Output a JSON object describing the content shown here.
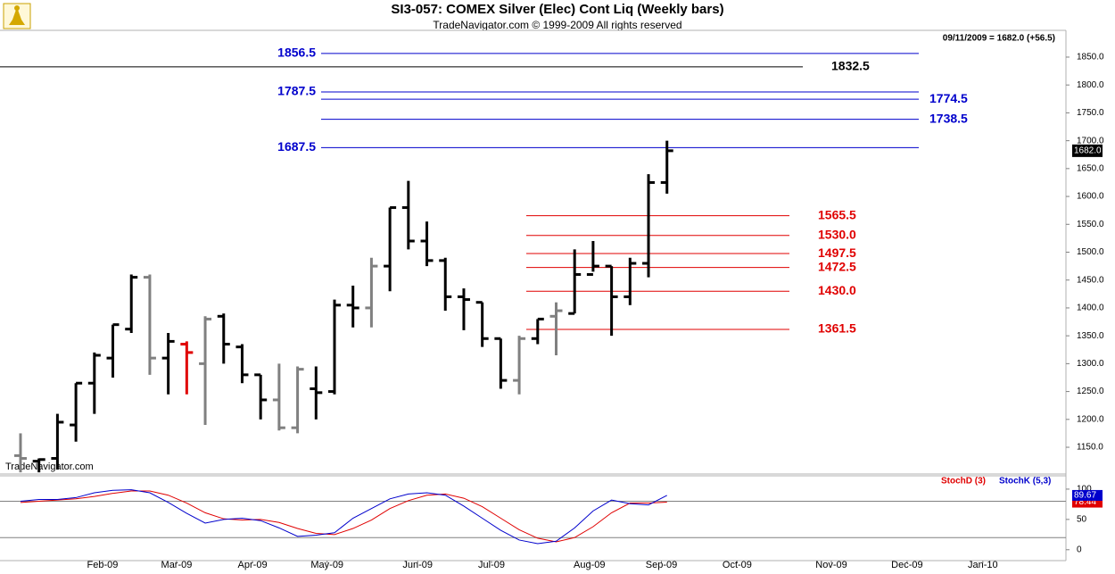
{
  "title": "SI3-057:  COMEX Silver (Elec) Cont Liq  (Weekly bars)",
  "subtitle": "TradeNavigator.com © 1999-2009 All rights reserved",
  "header_readout": "09/11/2009 = 1682.0 (+56.5)",
  "watermark": "TradeNavigator.com",
  "chart_data": [
    {
      "type": "ohlc",
      "xlim": [
        -1.11,
        56.6
      ],
      "ylim": [
        1102,
        1898
      ],
      "yticks": [
        {
          "value": 1150,
          "label": "1150.0"
        },
        {
          "value": 1200,
          "label": "1200.0"
        },
        {
          "value": 1250,
          "label": "1250.0"
        },
        {
          "value": 1300,
          "label": "1300.0"
        },
        {
          "value": 1350,
          "label": "1350.0"
        },
        {
          "value": 1400,
          "label": "1400.0"
        },
        {
          "value": 1450,
          "label": "1450.0"
        },
        {
          "value": 1500,
          "label": "1500.0"
        },
        {
          "value": 1550,
          "label": "1550.0"
        },
        {
          "value": 1600,
          "label": "1600.0"
        },
        {
          "value": 1650,
          "label": "1650.0"
        },
        {
          "value": 1700,
          "label": "1700.0"
        },
        {
          "value": 1750,
          "label": "1750.0"
        },
        {
          "value": 1800,
          "label": "1800.0"
        },
        {
          "value": 1850,
          "label": "1850.0"
        }
      ],
      "open": [
        1135,
        1125,
        1130,
        1190,
        1265,
        1310,
        1362,
        1455,
        1310,
        1335,
        1300,
        1385,
        1330,
        1280,
        1235,
        1185,
        1255,
        1250,
        1405,
        1400,
        1475,
        1580,
        1520,
        1485,
        1420,
        1410,
        1345,
        1270,
        1345,
        1385,
        1390,
        1460,
        1475,
        1420,
        1480,
        1625
      ],
      "high": [
        1175,
        1130,
        1210,
        1265,
        1320,
        1370,
        1460,
        1460,
        1355,
        1340,
        1385,
        1390,
        1335,
        1280,
        1300,
        1295,
        1295,
        1415,
        1440,
        1490,
        1580,
        1628,
        1555,
        1490,
        1435,
        1410,
        1345,
        1350,
        1380,
        1410,
        1505,
        1520,
        1475,
        1490,
        1640,
        1700
      ],
      "low": [
        1105,
        1105,
        1110,
        1160,
        1210,
        1275,
        1355,
        1280,
        1245,
        1245,
        1190,
        1300,
        1265,
        1200,
        1180,
        1175,
        1200,
        1245,
        1365,
        1365,
        1430,
        1505,
        1475,
        1395,
        1360,
        1330,
        1255,
        1245,
        1335,
        1315,
        1390,
        1465,
        1350,
        1405,
        1455,
        1605
      ],
      "close": [
        1130,
        1128,
        1195,
        1265,
        1315,
        1370,
        1455,
        1310,
        1340,
        1320,
        1380,
        1335,
        1280,
        1235,
        1185,
        1290,
        1248,
        1405,
        1400,
        1475,
        1580,
        1520,
        1485,
        1420,
        1415,
        1345,
        1270,
        1345,
        1380,
        1395,
        1460,
        1475,
        1420,
        1480,
        1625,
        1682
      ],
      "colors": [
        "#808080",
        "#000000",
        "#000000",
        "#000000",
        "#000000",
        "#000000",
        "#000000",
        "#808080",
        "#000000",
        "#e00000",
        "#808080",
        "#000000",
        "#000000",
        "#000000",
        "#808080",
        "#808080",
        "#000000",
        "#000000",
        "#000000",
        "#808080",
        "#000000",
        "#000000",
        "#000000",
        "#000000",
        "#000000",
        "#000000",
        "#000000",
        "#808080",
        "#000000",
        "#808080",
        "#000000",
        "#000000",
        "#000000",
        "#000000",
        "#000000",
        "#000000"
      ],
      "last_price": {
        "value": 1682,
        "label": "1682.0"
      },
      "levels": [
        {
          "value": 1856.5,
          "label": "1856.5",
          "color": "#0000cc",
          "label_side": "left"
        },
        {
          "value": 1832.5,
          "label": "1832.5",
          "color": "#000000",
          "label_side": "right"
        },
        {
          "value": 1787.5,
          "label": "1787.5",
          "color": "#0000cc",
          "label_side": "left"
        },
        {
          "value": 1774.5,
          "label": "1774.5",
          "color": "#0000cc",
          "label_side": "right"
        },
        {
          "value": 1738.5,
          "label": "1738.5",
          "color": "#0000cc",
          "label_side": "right"
        },
        {
          "value": 1687.5,
          "label": "1687.5",
          "color": "#0000cc",
          "label_side": "left"
        },
        {
          "value": 1565.5,
          "label": "1565.5",
          "color": "#e00000",
          "label_side": "right"
        },
        {
          "value": 1530,
          "label": "1530.0",
          "color": "#e00000",
          "label_side": "right"
        },
        {
          "value": 1497.5,
          "label": "1497.5",
          "color": "#e00000",
          "label_side": "right"
        },
        {
          "value": 1472.5,
          "label": "1472.5",
          "color": "#e00000",
          "label_side": "right"
        },
        {
          "value": 1430,
          "label": "1430.0",
          "color": "#e00000",
          "label_side": "right"
        },
        {
          "value": 1361.5,
          "label": "1361.5",
          "color": "#e00000",
          "label_side": "right"
        }
      ]
    },
    {
      "type": "line",
      "xlim": [
        -1.11,
        56.6
      ],
      "ylim": [
        -18,
        122
      ],
      "yticks": [
        0,
        50,
        100
      ],
      "hlines": [
        20,
        80
      ],
      "xticks": [
        {
          "value": 4.44,
          "label": "Feb-09"
        },
        {
          "value": 8.45,
          "label": "Mar-09"
        },
        {
          "value": 12.56,
          "label": "Apr-09"
        },
        {
          "value": 16.6,
          "label": "May-09"
        },
        {
          "value": 21.5,
          "label": "Jun-09"
        },
        {
          "value": 25.5,
          "label": "Jul-09"
        },
        {
          "value": 30.8,
          "label": "Aug-09"
        },
        {
          "value": 34.7,
          "label": "Sep-09"
        },
        {
          "value": 38.8,
          "label": "Oct-09"
        },
        {
          "value": 43.9,
          "label": "Nov-09"
        },
        {
          "value": 48.0,
          "label": "Dec-09"
        },
        {
          "value": 52.1,
          "label": "Jan-10"
        }
      ],
      "series": [
        {
          "name": "StochD (3)",
          "color": "#e00000",
          "values": [
            78,
            80,
            82,
            84,
            88,
            93,
            97,
            97,
            90,
            77,
            61,
            51,
            49,
            50,
            45,
            35,
            27,
            25,
            35,
            49,
            68,
            81,
            90,
            92,
            85,
            71,
            52,
            33,
            19,
            13,
            20,
            38,
            61,
            77,
            77,
            78.44
          ]
        },
        {
          "name": "StochK (5,3)",
          "color": "#0000cc",
          "values": [
            80,
            83,
            83,
            86,
            94,
            98,
            99,
            94,
            78,
            60,
            44,
            50,
            52,
            48,
            36,
            22,
            24,
            28,
            52,
            68,
            84,
            92,
            94,
            90,
            72,
            52,
            32,
            16,
            10,
            14,
            36,
            64,
            82,
            76,
            74,
            89.67
          ]
        }
      ]
    }
  ]
}
